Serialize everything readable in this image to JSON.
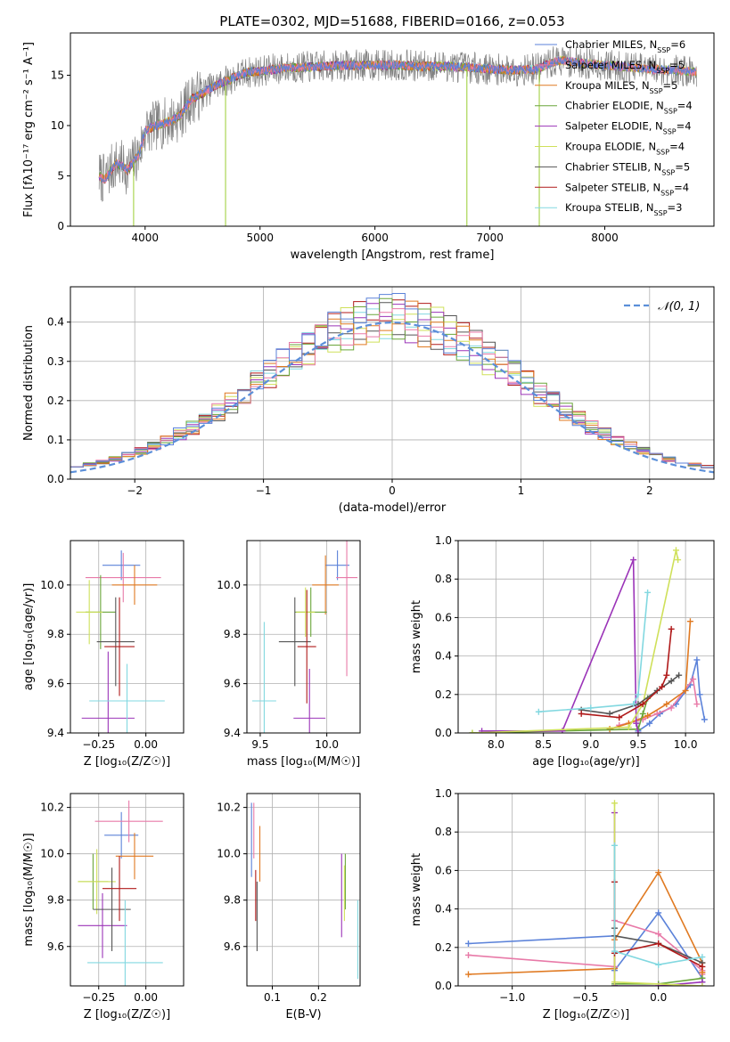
{
  "figure": {
    "title": "PLATE=0302, MJD=51688, FIBERID=0166, z=0.053"
  },
  "models": [
    {
      "name": "Chabrier MILES",
      "nssp": "6",
      "color": "#5b82d9"
    },
    {
      "name": "Salpeter MILES",
      "nssp": "5",
      "color": "#e87aa8"
    },
    {
      "name": "Kroupa MILES",
      "nssp": "5",
      "color": "#e07a22"
    },
    {
      "name": "Chabrier ELODIE",
      "nssp": "4",
      "color": "#6aa63a"
    },
    {
      "name": "Salpeter ELODIE",
      "nssp": "4",
      "color": "#9b34b8"
    },
    {
      "name": "Kroupa ELODIE",
      "nssp": "4",
      "color": "#cfe05a"
    },
    {
      "name": "Chabrier STELIB",
      "nssp": "5",
      "color": "#555555"
    },
    {
      "name": "Salpeter STELIB",
      "nssp": "4",
      "color": "#b01a1a"
    },
    {
      "name": "Kroupa STELIB",
      "nssp": "3",
      "color": "#82d8e0"
    }
  ],
  "chart_data": [
    {
      "id": "spectrum",
      "type": "line",
      "xlabel": "wavelength [Angstrom, rest frame]",
      "ylabel": "Flux [fλ10⁻¹⁷ erg cm⁻² s⁻¹ A⁻¹]",
      "xlim": [
        3350,
        8950
      ],
      "ylim": [
        0,
        19.2
      ],
      "xticks": [
        4000,
        5000,
        6000,
        7000,
        8000
      ],
      "yticks": [
        0,
        5,
        10,
        15
      ],
      "grid": false,
      "legend": "upper right",
      "continuum": {
        "x": [
          3600,
          3650,
          3700,
          3750,
          3800,
          3850,
          3900,
          3950,
          4000,
          4100,
          4200,
          4300,
          4400,
          4500,
          4600,
          4700,
          4800,
          4900,
          5000,
          5200,
          5400,
          5600,
          5800,
          6000,
          6200,
          6400,
          6600,
          6800,
          7000,
          7200,
          7400,
          7600,
          7800,
          8000,
          8200,
          8400,
          8600,
          8800
        ],
        "y": [
          5.0,
          4.6,
          5.6,
          6.2,
          6.0,
          5.6,
          6.4,
          7.2,
          9.5,
          10.0,
          10.4,
          10.9,
          12.6,
          13.2,
          13.9,
          14.4,
          14.9,
          15.3,
          15.4,
          15.7,
          15.8,
          15.9,
          16.0,
          16.0,
          16.0,
          15.9,
          15.9,
          15.8,
          15.6,
          15.5,
          15.6,
          16.5,
          16.2,
          16.0,
          15.8,
          15.6,
          15.5,
          15.3
        ]
      },
      "data_noise": 1.6,
      "data_color": "#808080",
      "bad_pixels": [
        {
          "x": 3900,
          "y": 0.0
        },
        {
          "x": 4700,
          "y": 0.0
        },
        {
          "x": 6800,
          "y": 0.0
        },
        {
          "x": 7430,
          "y": 0.0
        }
      ]
    },
    {
      "id": "residual-histogram",
      "type": "step",
      "xlabel": "(data-model)/error",
      "ylabel": "Normed distribution",
      "xlim": [
        -2.5,
        2.5
      ],
      "ylim": [
        0,
        0.49
      ],
      "xticks": [
        -2,
        -1,
        0,
        1,
        2
      ],
      "yticks": [
        0.0,
        0.1,
        0.2,
        0.3,
        0.4
      ],
      "grid": true,
      "legend": "upper right",
      "gaussian_label": "𝒩(0, 1)",
      "gaussian_color": "#5b8fd9",
      "bin_width": 0.1
    },
    {
      "id": "age-vs-metallicity",
      "type": "errorbar",
      "xlabel": "Z [log₁₀(Z/Z☉)]",
      "ylabel": "age  [log₁₀(age/yr)]",
      "xlim": [
        -0.4,
        0.2
      ],
      "ylim": [
        9.4,
        10.18
      ],
      "xticks": [
        -0.25,
        0.0
      ],
      "yticks": [
        9.4,
        9.6,
        9.8,
        10.0
      ],
      "grid": true,
      "points": [
        {
          "x": -0.13,
          "xerr": 0.1,
          "y": 10.08,
          "yerr": 0.06
        },
        {
          "x": -0.12,
          "xerr": 0.2,
          "y": 10.03,
          "yerr": 0.1
        },
        {
          "x": -0.06,
          "xerr": 0.12,
          "y": 10.0,
          "yerr": 0.08
        },
        {
          "x": -0.24,
          "xerr": 0.08,
          "y": 9.89,
          "yerr": 0.15
        },
        {
          "x": -0.2,
          "xerr": 0.14,
          "y": 9.46,
          "yerr": 0.27
        },
        {
          "x": -0.3,
          "xerr": 0.07,
          "y": 9.89,
          "yerr": 0.13
        },
        {
          "x": -0.16,
          "xerr": 0.1,
          "y": 9.77,
          "yerr": 0.18
        },
        {
          "x": -0.14,
          "xerr": 0.08,
          "y": 9.75,
          "yerr": 0.2
        },
        {
          "x": -0.1,
          "xerr": 0.2,
          "y": 9.53,
          "yerr": 0.15
        }
      ]
    },
    {
      "id": "age-vs-mass",
      "type": "errorbar",
      "xlabel": "mass [log₁₀(M/M☉)]",
      "ylabel": "",
      "xlim": [
        9.4,
        10.25
      ],
      "ylim": [
        9.4,
        10.18
      ],
      "xticks": [
        9.5,
        10.0
      ],
      "yticks": [
        9.4,
        9.6,
        9.8,
        10.0
      ],
      "grid": true,
      "points": [
        {
          "x": 10.08,
          "xerr": 0.09,
          "y": 10.08,
          "yerr": 0.06
        },
        {
          "x": 10.15,
          "xerr": 0.08,
          "y": 10.03,
          "yerr": 0.4
        },
        {
          "x": 9.99,
          "xerr": 0.1,
          "y": 10.0,
          "yerr": 0.12
        },
        {
          "x": 9.88,
          "xerr": 0.12,
          "y": 9.89,
          "yerr": 0.1
        },
        {
          "x": 9.87,
          "xerr": 0.12,
          "y": 9.46,
          "yerr": 0.2
        },
        {
          "x": 9.84,
          "xerr": 0.07,
          "y": 9.89,
          "yerr": 0.1
        },
        {
          "x": 9.76,
          "xerr": 0.12,
          "y": 9.77,
          "yerr": 0.18
        },
        {
          "x": 9.85,
          "xerr": 0.07,
          "y": 9.75,
          "yerr": 0.23
        },
        {
          "x": 9.53,
          "xerr": 0.09,
          "y": 9.53,
          "yerr": 0.32
        }
      ]
    },
    {
      "id": "mass-weight-vs-age",
      "type": "line",
      "xlabel": "age  [log₁₀(age/yr)]",
      "ylabel": "mass weight",
      "xlim": [
        7.6,
        10.3
      ],
      "ylim": [
        0,
        1.0
      ],
      "xticks": [
        8.0,
        8.5,
        9.0,
        9.5,
        10.0
      ],
      "yticks": [
        0.0,
        0.2,
        0.4,
        0.6,
        0.8,
        1.0
      ],
      "grid": true,
      "series": [
        {
          "x": [
            9.5,
            9.62,
            9.73,
            9.9,
            10.05,
            10.12,
            10.15,
            10.2
          ],
          "y": [
            0.01,
            0.05,
            0.1,
            0.15,
            0.25,
            0.38,
            0.2,
            0.07
          ]
        },
        {
          "x": [
            9.3,
            9.55,
            9.7,
            9.85,
            10.08,
            10.12
          ],
          "y": [
            0.04,
            0.07,
            0.1,
            0.13,
            0.28,
            0.15
          ]
        },
        {
          "x": [
            9.2,
            9.4,
            9.6,
            9.8,
            10.0,
            10.05
          ],
          "y": [
            0.02,
            0.05,
            0.09,
            0.15,
            0.22,
            0.58
          ]
        },
        {
          "x": [
            7.75,
            9.5,
            9.55,
            9.6
          ],
          "y": [
            0.0,
            0.02,
            0.1,
            0.18
          ]
        },
        {
          "x": [
            7.85,
            8.7,
            9.45,
            9.48,
            9.5
          ],
          "y": [
            0.01,
            0.01,
            0.9,
            0.05,
            0.0
          ]
        },
        {
          "x": [
            7.75,
            9.4,
            9.55,
            9.9,
            9.92
          ],
          "y": [
            0.0,
            0.03,
            0.15,
            0.95,
            0.9
          ]
        },
        {
          "x": [
            8.9,
            9.2,
            9.5,
            9.7,
            9.85,
            9.93
          ],
          "y": [
            0.12,
            0.1,
            0.15,
            0.22,
            0.27,
            0.3
          ]
        },
        {
          "x": [
            8.9,
            9.3,
            9.55,
            9.75,
            9.8,
            9.85
          ],
          "y": [
            0.1,
            0.08,
            0.15,
            0.24,
            0.3,
            0.54
          ]
        },
        {
          "x": [
            8.45,
            9.0,
            9.45,
            9.5,
            9.6
          ],
          "y": [
            0.11,
            0.13,
            0.15,
            0.2,
            0.73
          ]
        }
      ]
    },
    {
      "id": "mass-vs-metallicity",
      "type": "errorbar",
      "xlabel": "Z [log₁₀(Z/Z☉)]",
      "ylabel": "mass [log₁₀(M/M☉)]",
      "xlim": [
        -0.4,
        0.2
      ],
      "ylim": [
        9.43,
        10.26
      ],
      "xticks": [
        -0.25,
        0.0
      ],
      "yticks": [
        9.6,
        9.8,
        10.0,
        10.2
      ],
      "grid": true,
      "points": [
        {
          "x": -0.13,
          "xerr": 0.09,
          "y": 10.08,
          "yerr": 0.1
        },
        {
          "x": -0.09,
          "xerr": 0.18,
          "y": 10.14,
          "yerr": 0.09
        },
        {
          "x": -0.06,
          "xerr": 0.1,
          "y": 9.99,
          "yerr": 0.1
        },
        {
          "x": -0.28,
          "xerr": 0.08,
          "y": 9.88,
          "yerr": 0.12
        },
        {
          "x": -0.23,
          "xerr": 0.13,
          "y": 9.69,
          "yerr": 0.14
        },
        {
          "x": -0.26,
          "xerr": 0.1,
          "y": 9.88,
          "yerr": 0.14
        },
        {
          "x": -0.18,
          "xerr": 0.1,
          "y": 9.76,
          "yerr": 0.18
        },
        {
          "x": -0.14,
          "xerr": 0.09,
          "y": 9.85,
          "yerr": 0.14
        },
        {
          "x": -0.11,
          "xerr": 0.2,
          "y": 9.53,
          "yerr": 0.27
        }
      ]
    },
    {
      "id": "mass-vs-extinction",
      "type": "errorbar",
      "xlabel": "E(B-V)",
      "ylabel": "",
      "xlim": [
        0.045,
        0.29
      ],
      "ylim": [
        9.43,
        10.26
      ],
      "xticks": [
        0.1,
        0.2
      ],
      "yticks": [
        9.6,
        9.8,
        10.0,
        10.2
      ],
      "grid": true,
      "points": [
        {
          "x": 0.055,
          "xerr": 0.0,
          "y": 10.06,
          "yerr": 0.16
        },
        {
          "x": 0.06,
          "xerr": 0.0,
          "y": 10.1,
          "yerr": 0.12
        },
        {
          "x": 0.073,
          "xerr": 0.0,
          "y": 10.0,
          "yerr": 0.12
        },
        {
          "x": 0.258,
          "xerr": 0.0,
          "y": 9.88,
          "yerr": 0.12
        },
        {
          "x": 0.25,
          "xerr": 0.0,
          "y": 9.82,
          "yerr": 0.18
        },
        {
          "x": 0.256,
          "xerr": 0.0,
          "y": 9.83,
          "yerr": 0.12
        },
        {
          "x": 0.067,
          "xerr": 0.0,
          "y": 9.73,
          "yerr": 0.15
        },
        {
          "x": 0.064,
          "xerr": 0.0,
          "y": 9.82,
          "yerr": 0.11
        },
        {
          "x": 0.285,
          "xerr": 0.0,
          "y": 9.63,
          "yerr": 0.17
        }
      ]
    },
    {
      "id": "mass-weight-vs-metallicity",
      "type": "line",
      "xlabel": "Z [log₁₀(Z/Z☉)]",
      "ylabel": "mass weight",
      "xlim": [
        -1.37,
        0.38
      ],
      "ylim": [
        0,
        1.0
      ],
      "xticks": [
        -1.0,
        -0.5,
        0.0
      ],
      "yticks": [
        0.0,
        0.2,
        0.4,
        0.6,
        0.8,
        1.0
      ],
      "grid": true,
      "series": [
        {
          "x": [
            -1.3,
            -0.3,
            -0.3,
            0.0,
            0.3,
            0.3
          ],
          "y": [
            0.22,
            0.26,
            0.08,
            0.38,
            0.04,
            0.02
          ]
        },
        {
          "x": [
            -1.3,
            -0.3,
            -0.3,
            0.0,
            0.3,
            0.3
          ],
          "y": [
            0.16,
            0.1,
            0.34,
            0.27,
            0.08,
            0.06
          ]
        },
        {
          "x": [
            -1.3,
            -0.3,
            -0.3,
            0.0,
            0.3,
            0.3
          ],
          "y": [
            0.06,
            0.09,
            0.24,
            0.59,
            0.12,
            0.07
          ]
        },
        {
          "x": [
            -0.3,
            -0.3,
            0.0,
            0.3
          ],
          "y": [
            0.0,
            0.01,
            0.01,
            0.04
          ]
        },
        {
          "x": [
            -0.3,
            -0.3,
            0.0,
            0.3
          ],
          "y": [
            0.9,
            0.0,
            0.0,
            0.02
          ]
        },
        {
          "x": [
            -0.3,
            -0.3,
            0.3
          ],
          "y": [
            0.95,
            0.02,
            0.0
          ]
        },
        {
          "x": [
            -0.3,
            -0.3,
            0.0,
            0.3
          ],
          "y": [
            0.3,
            0.26,
            0.22,
            0.12
          ]
        },
        {
          "x": [
            -0.3,
            -0.3,
            0.0,
            0.3
          ],
          "y": [
            0.54,
            0.17,
            0.22,
            0.1
          ]
        },
        {
          "x": [
            -0.3,
            -0.3,
            0.0,
            0.3
          ],
          "y": [
            0.73,
            0.18,
            0.11,
            0.15
          ]
        }
      ]
    }
  ]
}
